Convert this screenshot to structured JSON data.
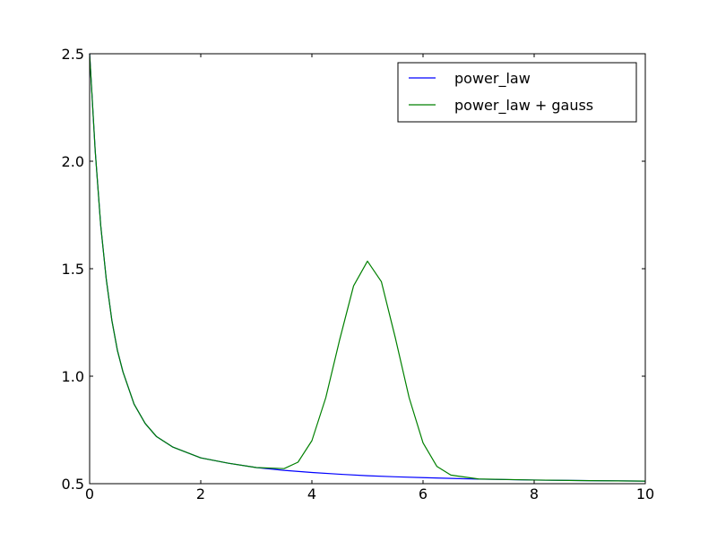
{
  "chart_data": {
    "type": "line",
    "title": "",
    "xlabel": "",
    "ylabel": "",
    "xlim": [
      0,
      10
    ],
    "ylim": [
      0.5,
      2.5
    ],
    "xticks": [
      0,
      2,
      4,
      6,
      8,
      10
    ],
    "yticks": [
      0.5,
      1.0,
      1.5,
      2.0,
      2.5
    ],
    "xtick_labels": [
      "0",
      "2",
      "4",
      "6",
      "8",
      "10"
    ],
    "ytick_labels": [
      "0.5",
      "1.0",
      "1.5",
      "2.0",
      "2.5"
    ],
    "grid": false,
    "legend_position": "top-right",
    "series": [
      {
        "name": "power_law",
        "color": "#0000ff",
        "x": [
          0,
          0.1,
          0.2,
          0.3,
          0.4,
          0.5,
          0.6,
          0.8,
          1.0,
          1.2,
          1.5,
          2.0,
          2.5,
          3.0,
          3.5,
          4.0,
          4.5,
          5.0,
          5.5,
          6.0,
          7.0,
          8.0,
          9.0,
          10.0
        ],
        "y": [
          2.5,
          2.05,
          1.7,
          1.45,
          1.26,
          1.12,
          1.02,
          0.87,
          0.78,
          0.72,
          0.67,
          0.62,
          0.595,
          0.575,
          0.562,
          0.552,
          0.544,
          0.537,
          0.532,
          0.528,
          0.521,
          0.517,
          0.514,
          0.512
        ]
      },
      {
        "name": "power_law + gauss",
        "color": "#008000",
        "x": [
          0,
          0.1,
          0.2,
          0.3,
          0.4,
          0.5,
          0.6,
          0.8,
          1.0,
          1.2,
          1.5,
          2.0,
          2.5,
          3.0,
          3.5,
          3.75,
          4.0,
          4.25,
          4.5,
          4.75,
          5.0,
          5.25,
          5.5,
          5.75,
          6.0,
          6.25,
          6.5,
          7.0,
          8.0,
          9.0,
          10.0
        ],
        "y": [
          2.5,
          2.05,
          1.7,
          1.45,
          1.26,
          1.12,
          1.02,
          0.87,
          0.78,
          0.72,
          0.67,
          0.62,
          0.595,
          0.575,
          0.57,
          0.6,
          0.7,
          0.9,
          1.17,
          1.42,
          1.535,
          1.44,
          1.18,
          0.9,
          0.69,
          0.58,
          0.54,
          0.522,
          0.517,
          0.514,
          0.512
        ]
      }
    ]
  }
}
